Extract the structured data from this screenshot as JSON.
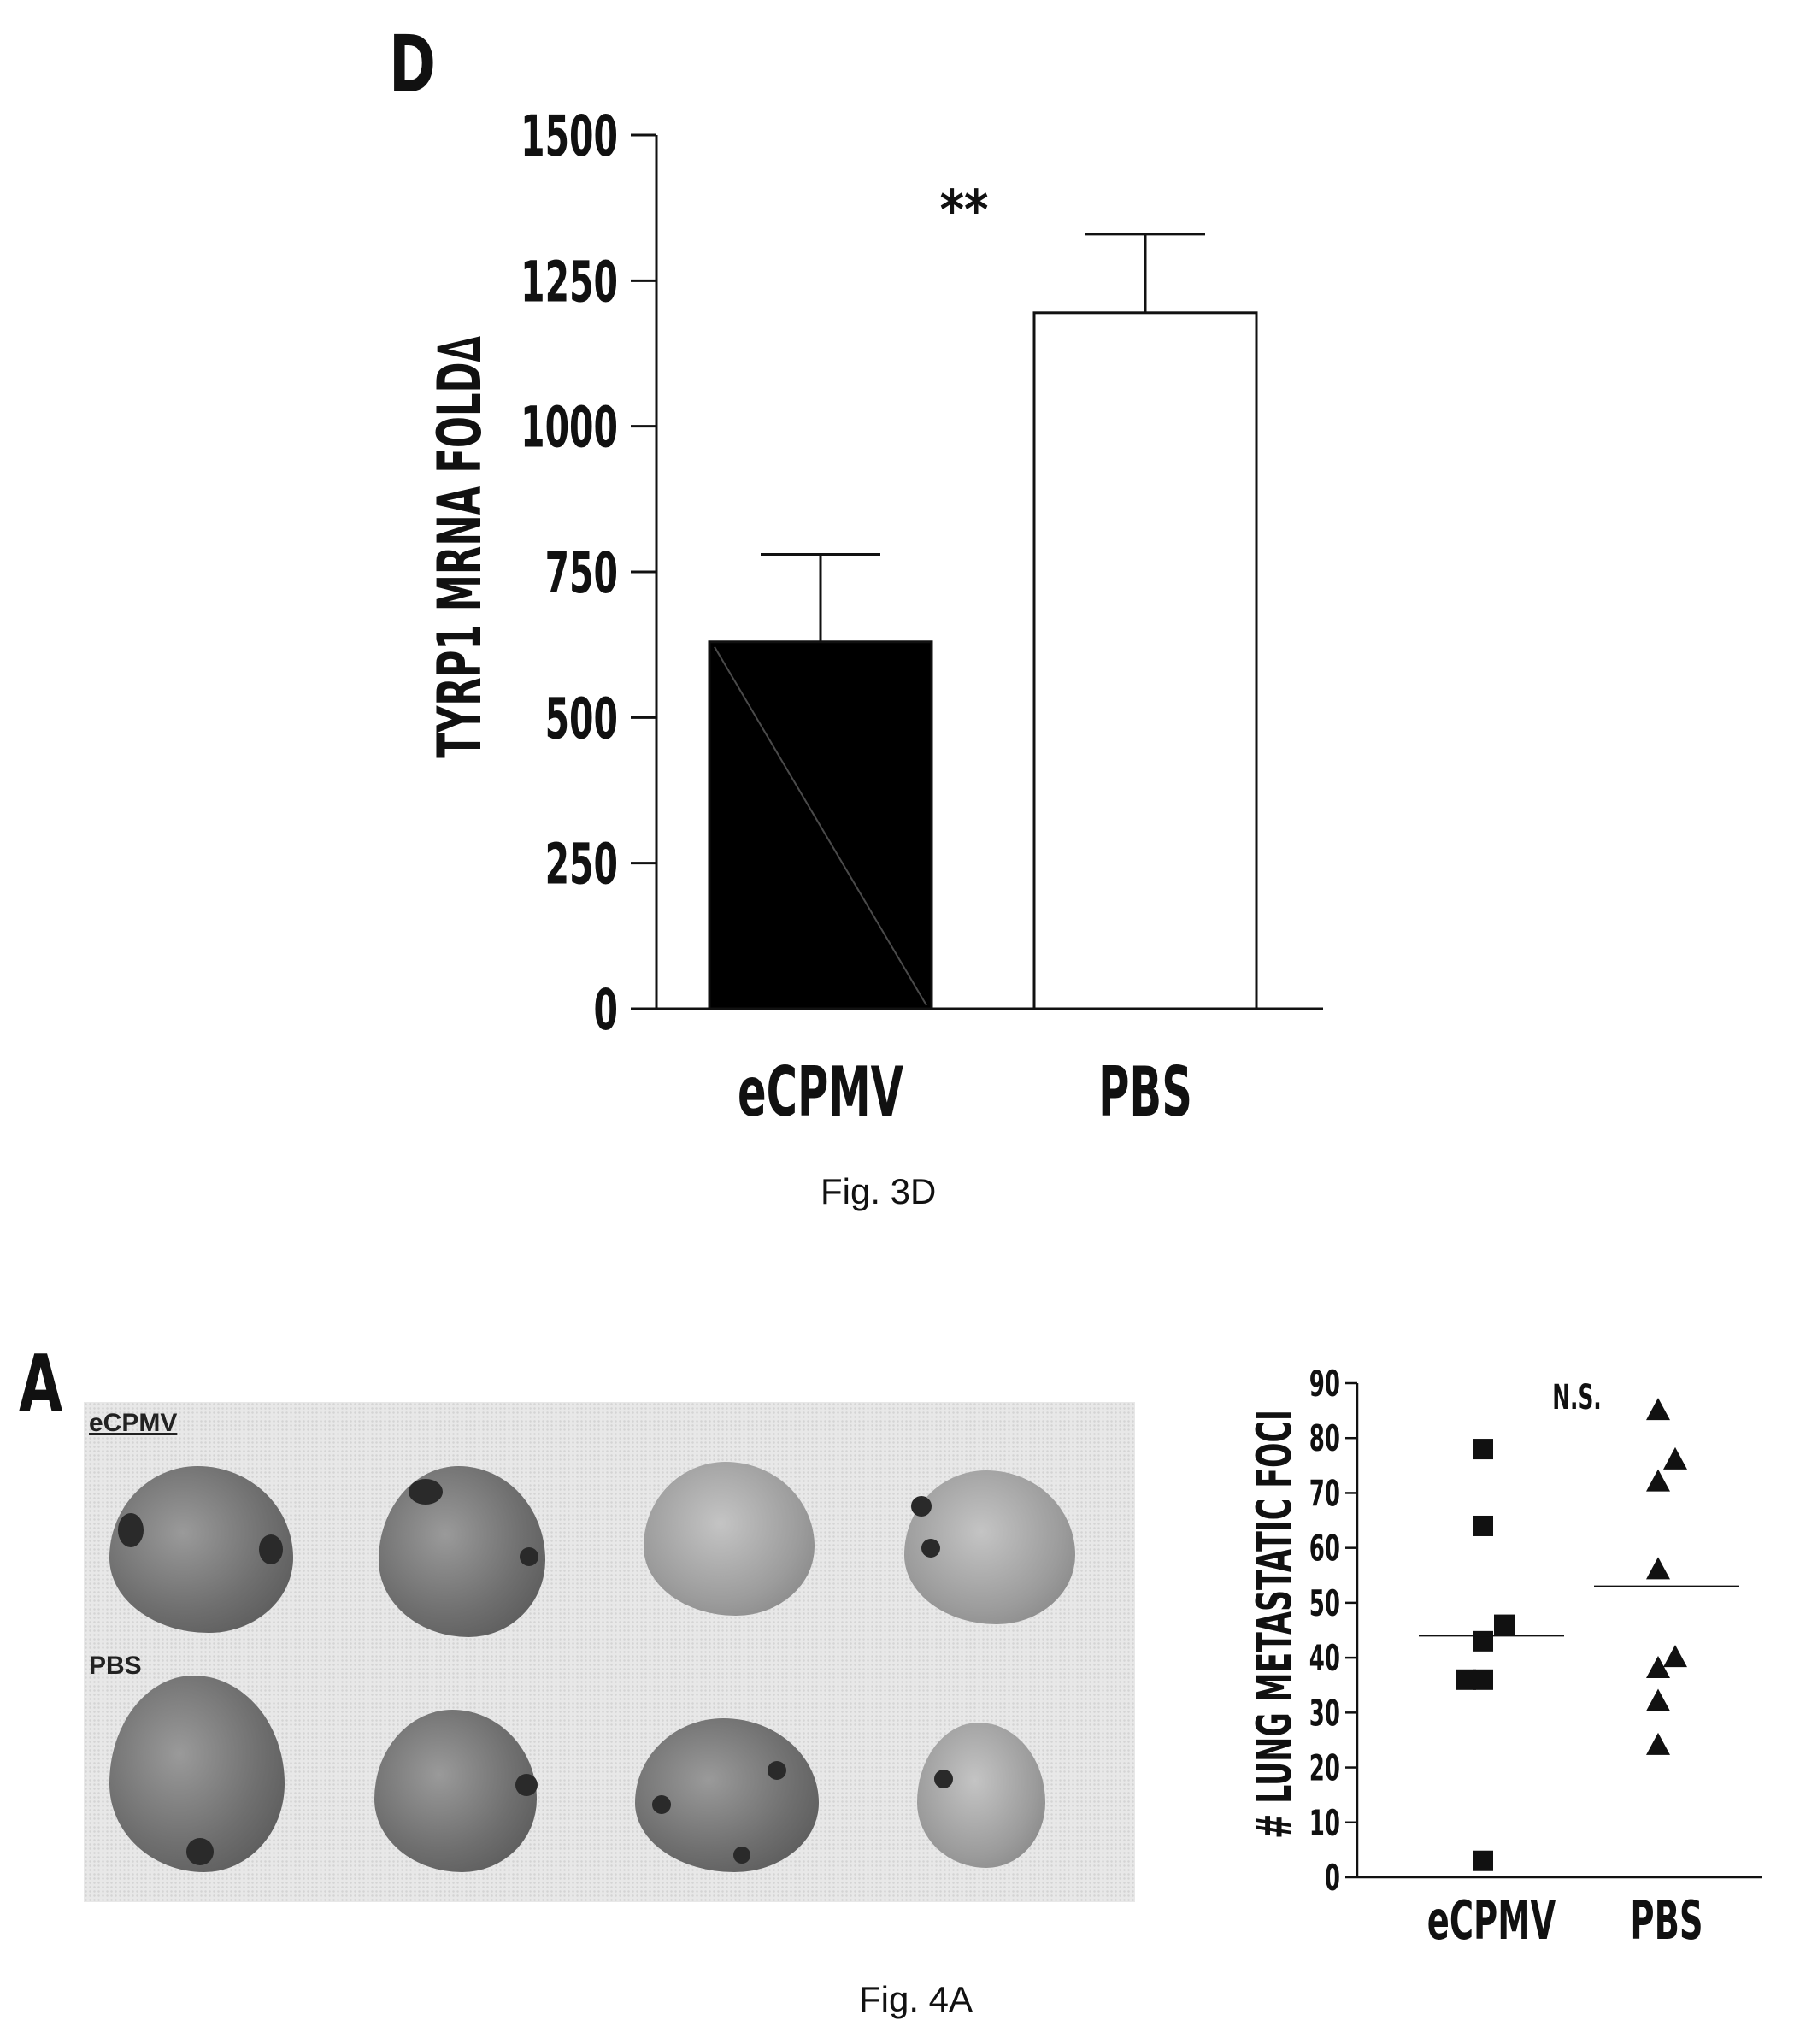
{
  "panel_d": {
    "letter": "D",
    "caption": "Fig. 3D"
  },
  "panel_a": {
    "letter": "A",
    "caption": "Fig. 4A",
    "photo_labels": [
      "eCPMV",
      "PBS"
    ]
  },
  "chart_data": [
    {
      "type": "bar",
      "ylabel": "TYRP1 MRNA FOLD∆",
      "categories": [
        "eCPMV",
        "PBS"
      ],
      "values": [
        630,
        1195
      ],
      "error": [
        150,
        135
      ],
      "ylim": [
        0,
        1500
      ],
      "yticks": [
        0,
        250,
        500,
        750,
        1000,
        1250,
        1500
      ],
      "annotation": "**",
      "colors": [
        "#000000",
        "#ffffff"
      ]
    },
    {
      "type": "scatter",
      "ylabel": "# LUNG METASTATIC FOCI",
      "categories": [
        "eCPMV",
        "PBS"
      ],
      "ylim": [
        0,
        90
      ],
      "yticks": [
        0,
        10,
        20,
        30,
        40,
        50,
        60,
        70,
        80,
        90
      ],
      "annotation": "N.S.",
      "series": [
        {
          "category": "eCPMV",
          "marker": "square",
          "points": [
            [
              -0.1,
              78
            ],
            [
              -0.1,
              64
            ],
            [
              -0.1,
              43
            ],
            [
              0.15,
              46
            ],
            [
              -0.3,
              36
            ],
            [
              -0.1,
              36
            ],
            [
              -0.1,
              3
            ]
          ],
          "mean": 44
        },
        {
          "category": "PBS",
          "marker": "triangle",
          "points": [
            [
              -0.1,
              85
            ],
            [
              -0.1,
              72
            ],
            [
              0.1,
              76
            ],
            [
              -0.1,
              56
            ],
            [
              -0.1,
              38
            ],
            [
              0.1,
              40
            ],
            [
              -0.1,
              32
            ],
            [
              -0.1,
              24
            ]
          ],
          "mean": 53
        }
      ]
    }
  ]
}
